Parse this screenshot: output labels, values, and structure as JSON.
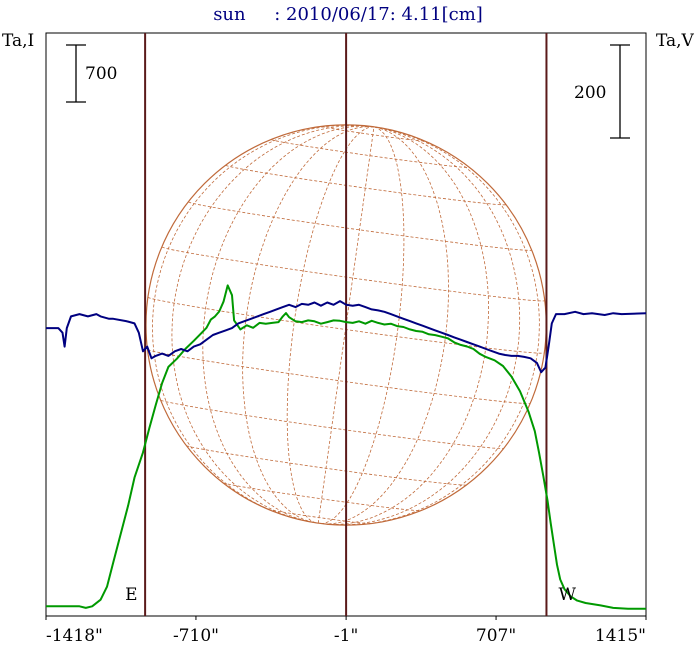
{
  "chart_data": {
    "type": "line",
    "title": "sun     : 2010/06/17: 4.11[cm]",
    "ylabel_left": "Ta,I",
    "ylabel_right": "Ta,V",
    "scale_left": "700",
    "scale_right": "200",
    "x_ticks": [
      {
        "value": -1418,
        "label": "-1418\""
      },
      {
        "value": -710,
        "label": "-710\""
      },
      {
        "value": -1,
        "label": "-1\""
      },
      {
        "value": 707,
        "label": "707\""
      },
      {
        "value": 1415,
        "label": "1415\""
      }
    ],
    "xlim": [
      -1418,
      1415
    ],
    "limb_markers": [
      {
        "label": "E",
        "x": -950
      },
      {
        "label": "W",
        "x": 945
      }
    ],
    "center_x": -1,
    "solar_radius_arcsec": 945,
    "series": [
      {
        "id": "I",
        "color": "#009900",
        "axis": "left",
        "points": [
          [
            -1418,
            -40
          ],
          [
            -1260,
            -40
          ],
          [
            -1230,
            -60
          ],
          [
            -1200,
            -40
          ],
          [
            -1160,
            40
          ],
          [
            -1130,
            200
          ],
          [
            -1100,
            500
          ],
          [
            -1060,
            900
          ],
          [
            -1030,
            1200
          ],
          [
            -1000,
            1540
          ],
          [
            -960,
            1850
          ],
          [
            -930,
            2150
          ],
          [
            -900,
            2430
          ],
          [
            -870,
            2700
          ],
          [
            -840,
            2900
          ],
          [
            -800,
            3000
          ],
          [
            -760,
            3120
          ],
          [
            -720,
            3220
          ],
          [
            -690,
            3300
          ],
          [
            -660,
            3380
          ],
          [
            -640,
            3480
          ],
          [
            -620,
            3520
          ],
          [
            -600,
            3580
          ],
          [
            -580,
            3700
          ],
          [
            -560,
            3900
          ],
          [
            -540,
            3780
          ],
          [
            -530,
            3470
          ],
          [
            -500,
            3360
          ],
          [
            -470,
            3410
          ],
          [
            -440,
            3380
          ],
          [
            -410,
            3440
          ],
          [
            -380,
            3430
          ],
          [
            -350,
            3440
          ],
          [
            -320,
            3450
          ],
          [
            -300,
            3520
          ],
          [
            -285,
            3560
          ],
          [
            -270,
            3510
          ],
          [
            -240,
            3460
          ],
          [
            -210,
            3450
          ],
          [
            -180,
            3470
          ],
          [
            -150,
            3460
          ],
          [
            -120,
            3430
          ],
          [
            -90,
            3450
          ],
          [
            -60,
            3470
          ],
          [
            -30,
            3465
          ],
          [
            0,
            3450
          ],
          [
            30,
            3440
          ],
          [
            60,
            3460
          ],
          [
            90,
            3430
          ],
          [
            120,
            3465
          ],
          [
            150,
            3440
          ],
          [
            180,
            3420
          ],
          [
            210,
            3430
          ],
          [
            240,
            3400
          ],
          [
            270,
            3390
          ],
          [
            300,
            3360
          ],
          [
            330,
            3340
          ],
          [
            360,
            3330
          ],
          [
            390,
            3300
          ],
          [
            420,
            3290
          ],
          [
            450,
            3270
          ],
          [
            480,
            3250
          ],
          [
            510,
            3200
          ],
          [
            540,
            3170
          ],
          [
            570,
            3150
          ],
          [
            600,
            3120
          ],
          [
            630,
            3060
          ],
          [
            660,
            3020
          ],
          [
            700,
            2980
          ],
          [
            740,
            2910
          ],
          [
            780,
            2780
          ],
          [
            820,
            2600
          ],
          [
            860,
            2350
          ],
          [
            890,
            2110
          ],
          [
            910,
            1850
          ],
          [
            930,
            1560
          ],
          [
            950,
            1260
          ],
          [
            965,
            980
          ],
          [
            980,
            720
          ],
          [
            995,
            470
          ],
          [
            1010,
            290
          ],
          [
            1030,
            170
          ],
          [
            1060,
            80
          ],
          [
            1090,
            30
          ],
          [
            1130,
            0
          ],
          [
            1200,
            -30
          ],
          [
            1260,
            -60
          ],
          [
            1330,
            -70
          ],
          [
            1415,
            -70
          ]
        ]
      },
      {
        "id": "V",
        "color": "#000080",
        "axis": "right",
        "points": [
          [
            -1418,
            30
          ],
          [
            -1360,
            30
          ],
          [
            -1340,
            20
          ],
          [
            -1330,
            -10
          ],
          [
            -1320,
            30
          ],
          [
            -1300,
            55
          ],
          [
            -1260,
            60
          ],
          [
            -1220,
            55
          ],
          [
            -1180,
            60
          ],
          [
            -1160,
            55
          ],
          [
            -1120,
            50
          ],
          [
            -1100,
            50
          ],
          [
            -1040,
            45
          ],
          [
            -1000,
            40
          ],
          [
            -980,
            20
          ],
          [
            -960,
            -20
          ],
          [
            -940,
            -10
          ],
          [
            -920,
            -35
          ],
          [
            -900,
            -30
          ],
          [
            -870,
            -25
          ],
          [
            -840,
            -30
          ],
          [
            -810,
            -20
          ],
          [
            -780,
            -15
          ],
          [
            -750,
            -20
          ],
          [
            -720,
            -10
          ],
          [
            -690,
            -5
          ],
          [
            -660,
            5
          ],
          [
            -630,
            15
          ],
          [
            -600,
            20
          ],
          [
            -570,
            25
          ],
          [
            -540,
            30
          ],
          [
            -510,
            40
          ],
          [
            -480,
            45
          ],
          [
            -450,
            50
          ],
          [
            -420,
            55
          ],
          [
            -390,
            60
          ],
          [
            -360,
            65
          ],
          [
            -330,
            70
          ],
          [
            -300,
            75
          ],
          [
            -270,
            80
          ],
          [
            -240,
            75
          ],
          [
            -210,
            82
          ],
          [
            -180,
            80
          ],
          [
            -150,
            85
          ],
          [
            -120,
            78
          ],
          [
            -90,
            85
          ],
          [
            -60,
            80
          ],
          [
            -30,
            88
          ],
          [
            0,
            80
          ],
          [
            30,
            78
          ],
          [
            60,
            80
          ],
          [
            90,
            75
          ],
          [
            120,
            70
          ],
          [
            150,
            68
          ],
          [
            180,
            65
          ],
          [
            210,
            60
          ],
          [
            240,
            55
          ],
          [
            270,
            50
          ],
          [
            300,
            45
          ],
          [
            330,
            40
          ],
          [
            360,
            35
          ],
          [
            390,
            30
          ],
          [
            420,
            25
          ],
          [
            450,
            20
          ],
          [
            480,
            15
          ],
          [
            510,
            10
          ],
          [
            540,
            5
          ],
          [
            570,
            0
          ],
          [
            600,
            -5
          ],
          [
            630,
            -10
          ],
          [
            660,
            -15
          ],
          [
            690,
            -20
          ],
          [
            720,
            -25
          ],
          [
            750,
            -28
          ],
          [
            780,
            -30
          ],
          [
            810,
            -30
          ],
          [
            840,
            -32
          ],
          [
            870,
            -35
          ],
          [
            900,
            -45
          ],
          [
            920,
            -65
          ],
          [
            940,
            -55
          ],
          [
            955,
            -10
          ],
          [
            970,
            40
          ],
          [
            990,
            60
          ],
          [
            1030,
            60
          ],
          [
            1080,
            65
          ],
          [
            1120,
            60
          ],
          [
            1160,
            62
          ],
          [
            1220,
            58
          ],
          [
            1260,
            62
          ],
          [
            1300,
            60
          ],
          [
            1415,
            62
          ]
        ]
      }
    ]
  },
  "colors": {
    "title": "#000080",
    "I": "#009900",
    "V": "#000080",
    "limb_line": "#5a1a1a",
    "grid": "#c06a3a",
    "axis": "#000000"
  }
}
